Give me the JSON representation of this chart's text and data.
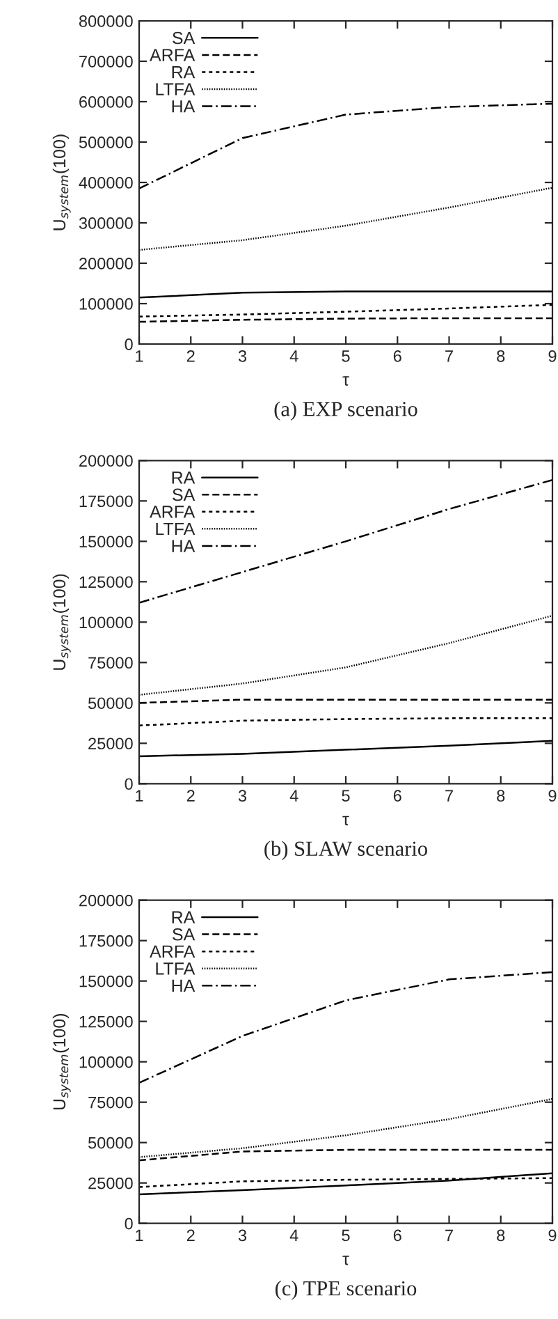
{
  "chart_data": [
    {
      "type": "line",
      "title": "(a) EXP scenario",
      "xlabel": "τ",
      "ylabel": "U$_{system}$(100)",
      "xlim": [
        1,
        9
      ],
      "xticks": [
        1,
        2,
        3,
        4,
        5,
        6,
        7,
        8,
        9
      ],
      "ylim": [
        0,
        800000
      ],
      "yticks": [
        0,
        100000,
        200000,
        300000,
        400000,
        500000,
        600000,
        700000,
        800000
      ],
      "x": [
        1,
        3,
        5,
        7,
        9
      ],
      "legend": "top left",
      "grid": false,
      "marker": "none",
      "series": [
        {
          "name": "SA",
          "color": "#000000",
          "line_style": "solid",
          "values": [
            115000,
            127000,
            130000,
            130000,
            130000
          ]
        },
        {
          "name": "ARFA",
          "color": "#000000",
          "line_style": "dashed",
          "values": [
            55000,
            60000,
            63000,
            64000,
            64000
          ]
        },
        {
          "name": "RA",
          "color": "#000000",
          "line_style": "dotted",
          "values": [
            68000,
            73000,
            80000,
            88000,
            97000
          ]
        },
        {
          "name": "LTFA",
          "color": "#000000",
          "line_style": "dotted",
          "values": [
            233000,
            257000,
            293000,
            338000,
            387000
          ]
        },
        {
          "name": "HA",
          "color": "#000000",
          "line_style": "dashdot",
          "values": [
            385000,
            510000,
            568000,
            587000,
            595000
          ]
        }
      ]
    },
    {
      "type": "line",
      "title": "(b) SLAW scenario",
      "xlabel": "τ",
      "ylabel": "U$_{system}$(100)",
      "xlim": [
        1,
        9
      ],
      "xticks": [
        1,
        2,
        3,
        4,
        5,
        6,
        7,
        8,
        9
      ],
      "ylim": [
        0,
        200000
      ],
      "yticks": [
        0,
        25000,
        50000,
        75000,
        100000,
        125000,
        150000,
        175000,
        200000
      ],
      "x": [
        1,
        3,
        5,
        7,
        9
      ],
      "legend": "top left",
      "grid": false,
      "marker": "none",
      "series": [
        {
          "name": "RA",
          "color": "#000000",
          "line_style": "solid",
          "values": [
            17000,
            18500,
            21000,
            23500,
            26500
          ]
        },
        {
          "name": "SA",
          "color": "#000000",
          "line_style": "dashed",
          "values": [
            50000,
            52000,
            52000,
            52000,
            52000
          ]
        },
        {
          "name": "ARFA",
          "color": "#000000",
          "line_style": "dotted",
          "values": [
            36000,
            39000,
            40000,
            40500,
            40500
          ]
        },
        {
          "name": "LTFA",
          "color": "#000000",
          "line_style": "dotted",
          "values": [
            55000,
            62000,
            72000,
            87000,
            104000
          ]
        },
        {
          "name": "HA",
          "color": "#000000",
          "line_style": "dashdot",
          "values": [
            112000,
            131000,
            150000,
            170000,
            188000
          ]
        }
      ]
    },
    {
      "type": "line",
      "title": "(c) TPE scenario",
      "xlabel": "τ",
      "ylabel": "U$_{system}$(100)",
      "xlim": [
        1,
        9
      ],
      "xticks": [
        1,
        2,
        3,
        4,
        5,
        6,
        7,
        8,
        9
      ],
      "ylim": [
        0,
        200000
      ],
      "yticks": [
        0,
        25000,
        50000,
        75000,
        100000,
        125000,
        150000,
        175000,
        200000
      ],
      "x": [
        1,
        3,
        5,
        7,
        9
      ],
      "legend": "top left",
      "grid": false,
      "marker": "none",
      "series": [
        {
          "name": "RA",
          "color": "#000000",
          "line_style": "solid",
          "values": [
            18000,
            20500,
            23500,
            26500,
            31000
          ]
        },
        {
          "name": "SA",
          "color": "#000000",
          "line_style": "dashed",
          "values": [
            39000,
            44500,
            45500,
            45500,
            45500
          ]
        },
        {
          "name": "ARFA",
          "color": "#000000",
          "line_style": "dotted",
          "values": [
            22500,
            26000,
            27000,
            27500,
            28000
          ]
        },
        {
          "name": "LTFA",
          "color": "#000000",
          "line_style": "dotted",
          "values": [
            41000,
            46500,
            54500,
            64500,
            77000
          ]
        },
        {
          "name": "HA",
          "color": "#000000",
          "line_style": "dashdot",
          "values": [
            87000,
            116000,
            138000,
            151000,
            155500
          ]
        }
      ]
    }
  ]
}
